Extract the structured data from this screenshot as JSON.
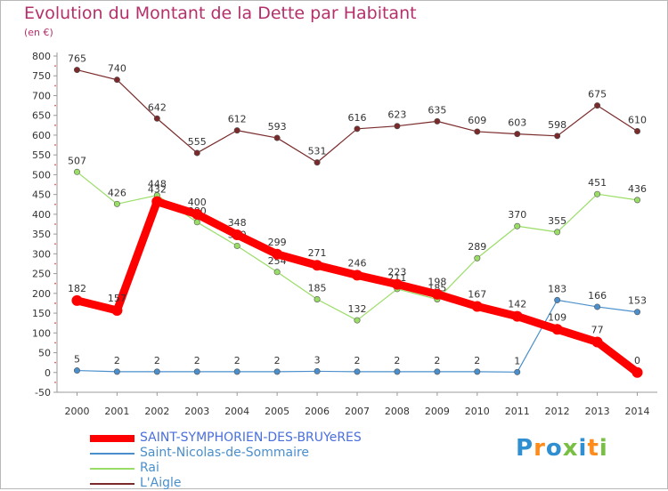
{
  "chart_data": {
    "type": "line",
    "title": "Evolution du Montant de la Dette par Habitant",
    "subtitle": "(en €)",
    "xlabel": "",
    "ylabel": "",
    "ylim": [
      -50,
      800
    ],
    "ytick_step": 50,
    "grid": false,
    "legend_position": "bottom-left",
    "categories": [
      "2000",
      "2001",
      "2002",
      "2003",
      "2004",
      "2005",
      "2006",
      "2007",
      "2008",
      "2009",
      "2010",
      "2011",
      "2012",
      "2013",
      "2014"
    ],
    "series": [
      {
        "name": "SAINT-SYMPHORIEN-DES-BRUYeRES",
        "color": "#ff0000",
        "highlight": true,
        "values": [
          182,
          157,
          432,
          400,
          348,
          299,
          271,
          246,
          223,
          198,
          167,
          142,
          109,
          77,
          0
        ]
      },
      {
        "name": "Saint-Nicolas-de-Sommaire",
        "color": "#4a8fcc",
        "highlight": false,
        "values": [
          5,
          2,
          2,
          2,
          2,
          2,
          3,
          2,
          2,
          2,
          2,
          1,
          183,
          166,
          153
        ]
      },
      {
        "name": "Rai",
        "color": "#99dd66",
        "highlight": false,
        "values": [
          507,
          426,
          448,
          380,
          320,
          254,
          185,
          132,
          211,
          185,
          289,
          370,
          355,
          451,
          436
        ]
      },
      {
        "name": "L'Aigle",
        "color": "#7a2a2a",
        "highlight": false,
        "values": [
          765,
          740,
          642,
          555,
          612,
          593,
          531,
          616,
          623,
          635,
          609,
          603,
          598,
          675,
          610
        ]
      }
    ]
  },
  "logo": {
    "text": "Proxiti",
    "colors": [
      "#2f8fd0",
      "#ff8c1a",
      "#2f8fd0",
      "#77c043",
      "#2f8fd0",
      "#ff8c1a",
      "#77c043"
    ]
  }
}
